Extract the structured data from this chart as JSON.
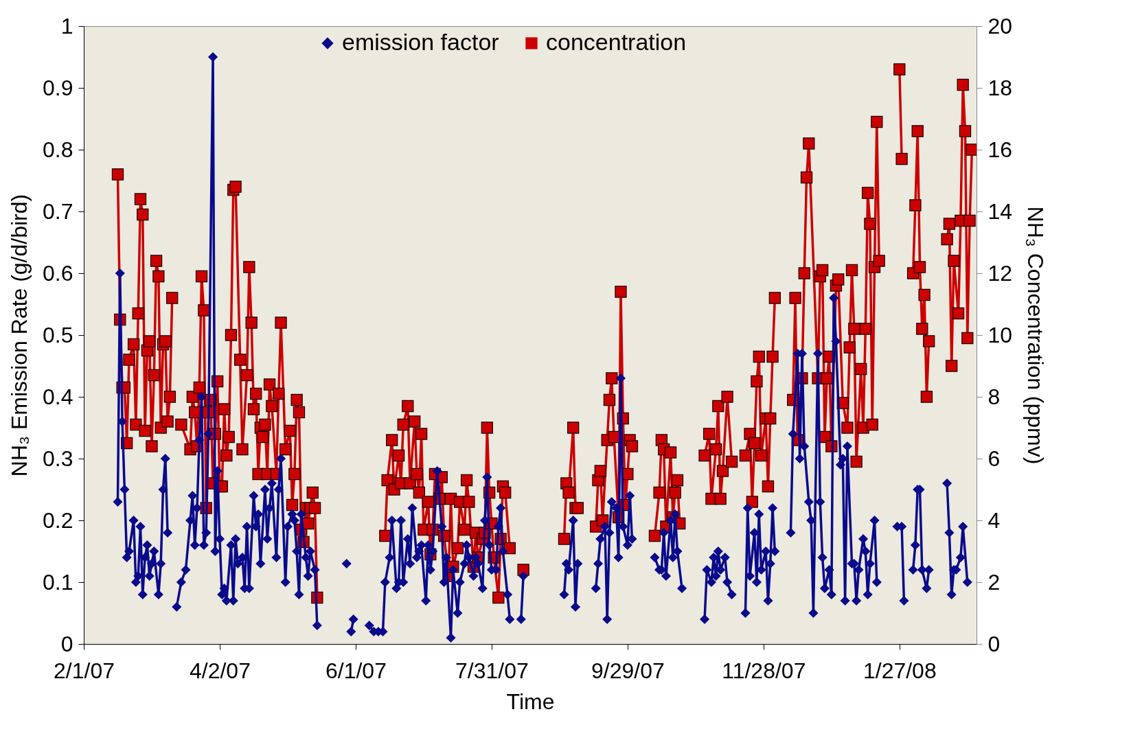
{
  "chart_data": {
    "type": "line",
    "xlabel": "Time",
    "ylabel": "NH₃ Emission Rate (g/d/bird)",
    "y2label": "NH₃ Concentration (ppmv)",
    "xlim": [
      "2007-02-01",
      "2008-03-01"
    ],
    "xticks": [
      {
        "value": "2007-02-01",
        "label": "2/1/07"
      },
      {
        "value": "2007-04-02",
        "label": "4/2/07"
      },
      {
        "value": "2007-06-01",
        "label": "6/1/07"
      },
      {
        "value": "2007-07-31",
        "label": "7/31/07"
      },
      {
        "value": "2007-09-29",
        "label": "9/29/07"
      },
      {
        "value": "2007-11-28",
        "label": "11/28/07"
      },
      {
        "value": "2008-01-27",
        "label": "1/27/08"
      }
    ],
    "ylim": [
      0,
      1
    ],
    "yticks": [
      0,
      0.1,
      0.2,
      0.3,
      0.4,
      0.5,
      0.6,
      0.7,
      0.8,
      0.9,
      1
    ],
    "y2lim": [
      0,
      20
    ],
    "y2ticks": [
      0,
      2,
      4,
      6,
      8,
      10,
      12,
      14,
      16,
      18,
      20
    ],
    "legend": "top",
    "grid": false,
    "series": [
      {
        "name": "emission factor",
        "color": "#0a0a8c",
        "marker": "diamond",
        "x": [
          "2007-02-16",
          "2007-02-17",
          "2007-02-18",
          "2007-02-19",
          "2007-02-20",
          "2007-02-21",
          "2007-02-23",
          "2007-02-24",
          "2007-02-25",
          "2007-02-26",
          "2007-02-27",
          "2007-02-28",
          "2007-03-01",
          "2007-03-02",
          "2007-03-03",
          "2007-03-04",
          "2007-03-06",
          "2007-03-07",
          "2007-03-08",
          "2007-03-09",
          "2007-03-10",
          "2007-03-12",
          "2007-03-14",
          "2007-03-16",
          "2007-03-18",
          "2007-03-20",
          "2007-03-21",
          "2007-03-22",
          "2007-03-23",
          "2007-03-24",
          "2007-03-25",
          "2007-03-26",
          "2007-03-27",
          "2007-03-28",
          "2007-03-30",
          "2007-03-31",
          "2007-04-01",
          "2007-04-02",
          "2007-04-03",
          "2007-04-04",
          "2007-04-05",
          "2007-04-07",
          "2007-04-08",
          "2007-04-09",
          "2007-04-10",
          "2007-04-12",
          "2007-04-13",
          "2007-04-14",
          "2007-04-15",
          "2007-04-17",
          "2007-04-18",
          "2007-04-19",
          "2007-04-20",
          "2007-04-22",
          "2007-04-23",
          "2007-04-24",
          "2007-04-25",
          "2007-04-27",
          "2007-04-28",
          "2007-04-29",
          "2007-05-01",
          "2007-05-02",
          "2007-05-04",
          "2007-05-05",
          "2007-05-06",
          "2007-05-07",
          "2007-05-08",
          "2007-05-10",
          "2007-05-11",
          "2007-05-12",
          "2007-05-14",
          "2007-05-15",
          "2007-05-22",
          "2007-05-28",
          "2007-05-29",
          "2007-05-30",
          "2007-05-31",
          "2007-06-04",
          "2007-06-07",
          "2007-06-09",
          "2007-06-11",
          "2007-06-13",
          "2007-06-14",
          "2007-06-16",
          "2007-06-17",
          "2007-06-19",
          "2007-06-20",
          "2007-06-21",
          "2007-06-22",
          "2007-06-24",
          "2007-06-25",
          "2007-06-26",
          "2007-06-28",
          "2007-06-29",
          "2007-06-30",
          "2007-07-02",
          "2007-07-03",
          "2007-07-04",
          "2007-07-05",
          "2007-07-07",
          "2007-07-09",
          "2007-07-10",
          "2007-07-11",
          "2007-07-13",
          "2007-07-14",
          "2007-07-16",
          "2007-07-17",
          "2007-07-19",
          "2007-07-20",
          "2007-07-21",
          "2007-07-23",
          "2007-07-24",
          "2007-07-25",
          "2007-07-27",
          "2007-07-28",
          "2007-07-29",
          "2007-07-30",
          "2007-07-31",
          "2007-08-02",
          "2007-08-03",
          "2007-08-04",
          "2007-08-05",
          "2007-08-07",
          "2007-08-08",
          "2007-08-11",
          "2007-08-13",
          "2007-08-14",
          "2007-08-20",
          "2007-09-01",
          "2007-09-02",
          "2007-09-03",
          "2007-09-05",
          "2007-09-06",
          "2007-09-07",
          "2007-09-11",
          "2007-09-15",
          "2007-09-16",
          "2007-09-17",
          "2007-09-19",
          "2007-09-20",
          "2007-09-21",
          "2007-09-22",
          "2007-09-24",
          "2007-09-25",
          "2007-09-26",
          "2007-09-27",
          "2007-09-29",
          "2007-09-30",
          "2007-10-01",
          "2007-10-06",
          "2007-10-11",
          "2007-10-13",
          "2007-10-14",
          "2007-10-15",
          "2007-10-16",
          "2007-10-18",
          "2007-10-19",
          "2007-10-20",
          "2007-10-21",
          "2007-10-23",
          "2007-10-28",
          "2007-11-02",
          "2007-11-03",
          "2007-11-05",
          "2007-11-06",
          "2007-11-07",
          "2007-11-08",
          "2007-11-09",
          "2007-11-11",
          "2007-11-12",
          "2007-11-14",
          "2007-11-17",
          "2007-11-20",
          "2007-11-21",
          "2007-11-22",
          "2007-11-24",
          "2007-11-25",
          "2007-11-26",
          "2007-11-27",
          "2007-11-29",
          "2007-11-30",
          "2007-12-01",
          "2007-12-02",
          "2007-12-03",
          "2007-12-07",
          "2007-12-10",
          "2007-12-11",
          "2007-12-13",
          "2007-12-14",
          "2007-12-15",
          "2007-12-16",
          "2007-12-18",
          "2007-12-19",
          "2007-12-20",
          "2007-12-22",
          "2007-12-23",
          "2007-12-24",
          "2007-12-25",
          "2007-12-27",
          "2007-12-28",
          "2007-12-29",
          "2007-12-30",
          "2008-01-01",
          "2008-01-02",
          "2008-01-03",
          "2008-01-04",
          "2008-01-06",
          "2008-01-07",
          "2008-01-08",
          "2008-01-09",
          "2008-01-11",
          "2008-01-12",
          "2008-01-13",
          "2008-01-14",
          "2008-01-16",
          "2008-01-17",
          "2008-01-21",
          "2008-01-26",
          "2008-01-28",
          "2008-01-29",
          "2008-01-31",
          "2008-02-02",
          "2008-02-03",
          "2008-02-04",
          "2008-02-05",
          "2008-02-06",
          "2008-02-08",
          "2008-02-09",
          "2008-02-13",
          "2008-02-17",
          "2008-02-18",
          "2008-02-19",
          "2008-02-20",
          "2008-02-21",
          "2008-02-23",
          "2008-02-24",
          "2008-02-26"
        ],
        "values": [
          0.23,
          0.6,
          0.36,
          0.25,
          0.14,
          0.15,
          0.2,
          0.1,
          0.11,
          0.19,
          0.08,
          0.14,
          0.16,
          0.11,
          0.13,
          0.15,
          0.08,
          0.13,
          0.25,
          0.3,
          0.18,
          null,
          0.06,
          0.1,
          0.12,
          0.2,
          0.24,
          0.16,
          0.22,
          0.33,
          0.4,
          0.16,
          0.18,
          0.34,
          0.95,
          0.15,
          0.28,
          0.17,
          0.08,
          0.09,
          0.07,
          0.16,
          0.07,
          0.17,
          0.13,
          0.14,
          0.09,
          0.19,
          0.09,
          0.24,
          0.19,
          0.21,
          0.13,
          0.25,
          0.17,
          0.22,
          0.26,
          0.14,
          0.25,
          0.3,
          0.1,
          0.19,
          0.21,
          0.2,
          0.15,
          0.08,
          0.21,
          0.14,
          0.11,
          0.15,
          0.12,
          0.03,
          null,
          0.13,
          null,
          0.02,
          0.04,
          null,
          0.03,
          0.02,
          0.02,
          0.02,
          0.1,
          0.14,
          0.2,
          0.09,
          0.1,
          0.2,
          0.1,
          0.17,
          0.13,
          0.22,
          0.14,
          0.15,
          0.16,
          0.07,
          0.16,
          0.12,
          0.15,
          0.28,
          0.19,
          0.1,
          0.14,
          0.01,
          0.12,
          0.05,
          0.1,
          0.13,
          0.16,
          0.14,
          0.11,
          0.14,
          0.13,
          0.09,
          0.2,
          0.27,
          0.16,
          0.12,
          0.12,
          0.19,
          0.22,
          0.15,
          0.08,
          0.04,
          null,
          0.04,
          0.11,
          null,
          0.08,
          0.13,
          0.12,
          0.2,
          0.06,
          0.13,
          null,
          0.09,
          0.13,
          0.17,
          0.19,
          0.04,
          0.18,
          0.23,
          0.22,
          0.14,
          0.43,
          0.19,
          0.16,
          0.24,
          0.17,
          null,
          0.14,
          0.12,
          0.12,
          0.18,
          0.11,
          0.2,
          0.14,
          0.21,
          0.15,
          0.09,
          null,
          0.04,
          0.12,
          0.1,
          0.14,
          0.11,
          0.15,
          0.12,
          0.14,
          0.1,
          0.08,
          null,
          0.05,
          0.22,
          0.11,
          0.18,
          0.1,
          0.21,
          0.12,
          0.15,
          0.07,
          0.13,
          0.22,
          0.15,
          null,
          0.18,
          0.34,
          0.47,
          0.3,
          0.47,
          0.32,
          0.23,
          0.2,
          0.05,
          0.47,
          0.23,
          0.14,
          0.09,
          0.12,
          0.08,
          0.56,
          0.49,
          0.29,
          0.3,
          0.07,
          0.32,
          0.13,
          0.13,
          0.07,
          0.12,
          0.17,
          0.15,
          0.08,
          0.13,
          0.2,
          0.1,
          null,
          0.19,
          0.19,
          0.07,
          null,
          0.12,
          0.16,
          0.25,
          0.25,
          0.12,
          0.09,
          0.12,
          null,
          0.26,
          0.18,
          0.08,
          0.12,
          0.12,
          0.14,
          0.19,
          0.1
        ]
      },
      {
        "name": "concentration",
        "color": "#cc0000",
        "marker": "square",
        "axis": "y2",
        "x": [
          "2007-02-16",
          "2007-02-17",
          "2007-02-18",
          "2007-02-19",
          "2007-02-20",
          "2007-02-21",
          "2007-02-23",
          "2007-02-24",
          "2007-02-25",
          "2007-02-26",
          "2007-02-27",
          "2007-02-28",
          "2007-03-01",
          "2007-03-02",
          "2007-03-03",
          "2007-03-04",
          "2007-03-05",
          "2007-03-06",
          "2007-03-07",
          "2007-03-08",
          "2007-03-09",
          "2007-03-10",
          "2007-03-11",
          "2007-03-12",
          "2007-03-14",
          "2007-03-16",
          "2007-03-20",
          "2007-03-21",
          "2007-03-22",
          "2007-03-23",
          "2007-03-24",
          "2007-03-25",
          "2007-03-26",
          "2007-03-27",
          "2007-03-28",
          "2007-03-29",
          "2007-03-30",
          "2007-03-31",
          "2007-04-01",
          "2007-04-02",
          "2007-04-03",
          "2007-04-04",
          "2007-04-05",
          "2007-04-06",
          "2007-04-07",
          "2007-04-08",
          "2007-04-09",
          "2007-04-11",
          "2007-04-12",
          "2007-04-14",
          "2007-04-15",
          "2007-04-16",
          "2007-04-17",
          "2007-04-18",
          "2007-04-19",
          "2007-04-20",
          "2007-04-21",
          "2007-04-22",
          "2007-04-23",
          "2007-04-24",
          "2007-04-25",
          "2007-04-27",
          "2007-04-28",
          "2007-04-29",
          "2007-05-01",
          "2007-05-03",
          "2007-05-04",
          "2007-05-05",
          "2007-05-06",
          "2007-05-07",
          "2007-05-08",
          "2007-05-09",
          "2007-05-10",
          "2007-05-11",
          "2007-05-12",
          "2007-05-13",
          "2007-05-14",
          "2007-05-15",
          "2007-06-01",
          "2007-06-14",
          "2007-06-15",
          "2007-06-17",
          "2007-06-18",
          "2007-06-20",
          "2007-06-21",
          "2007-06-22",
          "2007-06-24",
          "2007-06-25",
          "2007-06-27",
          "2007-06-28",
          "2007-06-29",
          "2007-06-30",
          "2007-07-01",
          "2007-07-03",
          "2007-07-04",
          "2007-07-05",
          "2007-07-06",
          "2007-07-08",
          "2007-07-09",
          "2007-07-10",
          "2007-07-12",
          "2007-07-13",
          "2007-07-14",
          "2007-07-16",
          "2007-07-17",
          "2007-07-19",
          "2007-07-20",
          "2007-07-21",
          "2007-07-23",
          "2007-07-24",
          "2007-07-25",
          "2007-07-27",
          "2007-07-28",
          "2007-07-29",
          "2007-07-30",
          "2007-07-31",
          "2007-08-01",
          "2007-08-03",
          "2007-08-04",
          "2007-08-05",
          "2007-08-06",
          "2007-08-08",
          "2007-08-11",
          "2007-08-14",
          "2007-08-20",
          "2007-09-01",
          "2007-09-02",
          "2007-09-03",
          "2007-09-05",
          "2007-09-06",
          "2007-09-07",
          "2007-09-11",
          "2007-09-15",
          "2007-09-16",
          "2007-09-17",
          "2007-09-18",
          "2007-09-20",
          "2007-09-21",
          "2007-09-22",
          "2007-09-23",
          "2007-09-25",
          "2007-09-26",
          "2007-09-27",
          "2007-09-28",
          "2007-09-29",
          "2007-09-30",
          "2007-10-01",
          "2007-10-06",
          "2007-10-11",
          "2007-10-13",
          "2007-10-14",
          "2007-10-15",
          "2007-10-16",
          "2007-10-18",
          "2007-10-19",
          "2007-10-20",
          "2007-10-21",
          "2007-10-22",
          "2007-10-28",
          "2007-11-02",
          "2007-11-04",
          "2007-11-05",
          "2007-11-07",
          "2007-11-08",
          "2007-11-09",
          "2007-11-10",
          "2007-11-12",
          "2007-11-14",
          "2007-11-17",
          "2007-11-20",
          "2007-11-22",
          "2007-11-23",
          "2007-11-24",
          "2007-11-25",
          "2007-11-26",
          "2007-11-27",
          "2007-11-29",
          "2007-11-30",
          "2007-12-01",
          "2007-12-02",
          "2007-12-03",
          "2007-12-07",
          "2007-12-11",
          "2007-12-12",
          "2007-12-13",
          "2007-12-15",
          "2007-12-16",
          "2007-12-17",
          "2007-12-18",
          "2007-12-22",
          "2007-12-23",
          "2007-12-24",
          "2007-12-25",
          "2007-12-26",
          "2007-12-27",
          "2007-12-28",
          "2007-12-30",
          "2007-12-31",
          "2008-01-02",
          "2008-01-04",
          "2008-01-05",
          "2008-01-06",
          "2008-01-07",
          "2008-01-08",
          "2008-01-10",
          "2008-01-11",
          "2008-01-12",
          "2008-01-13",
          "2008-01-14",
          "2008-01-15",
          "2008-01-16",
          "2008-01-17",
          "2008-01-18",
          "2008-01-22",
          "2008-01-27",
          "2008-01-28",
          "2008-01-31",
          "2008-02-02",
          "2008-02-03",
          "2008-02-04",
          "2008-02-05",
          "2008-02-06",
          "2008-02-07",
          "2008-02-08",
          "2008-02-09",
          "2008-02-13",
          "2008-02-17",
          "2008-02-18",
          "2008-02-19",
          "2008-02-20",
          "2008-02-22",
          "2008-02-23",
          "2008-02-24",
          "2008-02-25",
          "2008-02-26",
          "2008-02-27",
          "2008-02-28"
        ],
        "values": [
          15.2,
          10.5,
          8.3,
          8.3,
          6.5,
          9.2,
          9.7,
          7.1,
          10.7,
          14.4,
          13.9,
          6.9,
          9.5,
          9.8,
          6.4,
          8.7,
          12.4,
          11.9,
          7,
          9.7,
          9.8,
          7.2,
          8,
          11.2,
          null,
          7.1,
          6.3,
          8,
          7.5,
          6.4,
          8.3,
          11.9,
          10.8,
          4.4,
          7.5,
          7.9,
          5.2,
          6.8,
          8.5,
          5.1,
          5.1,
          7.6,
          6.1,
          6.7,
          10,
          14.7,
          14.8,
          9.2,
          6.3,
          8.7,
          12.2,
          10.4,
          7.6,
          8.1,
          5.5,
          7,
          6.7,
          7.1,
          5.5,
          8.4,
          7.7,
          5.5,
          8.1,
          10.4,
          6.3,
          6.9,
          4.5,
          5.5,
          7.9,
          7.5,
          3.7,
          3.3,
          4.4,
          3.9,
          4.4,
          4.9,
          4.4,
          1.5,
          null,
          3.5,
          5.3,
          6.6,
          5,
          6.1,
          5.2,
          7.1,
          7.7,
          5.2,
          7.2,
          5.5,
          4.9,
          6.8,
          3.7,
          4.6,
          2.9,
          3.7,
          5.5,
          4.7,
          5.4,
          3.5,
          2.2,
          4.7,
          2.5,
          3.1,
          4.6,
          3.7,
          5.3,
          4.6,
          2.5,
          3.6,
          2.8,
          3.4,
          3.6,
          7,
          4.9,
          3.9,
          2.8,
          1.5,
          3.4,
          5.1,
          4.9,
          3.1,
          null,
          2.4,
          null,
          3.4,
          5.2,
          4.9,
          7,
          4.4,
          4.4,
          null,
          3.8,
          5.3,
          5.6,
          4,
          6.6,
          7.9,
          8.6,
          6.7,
          4.1,
          11.4,
          7.3,
          4.5,
          5.5,
          6.6,
          6.4,
          null,
          3.5,
          4.9,
          6.6,
          6.3,
          3.8,
          6.2,
          4.1,
          4.9,
          5.3,
          3.9,
          null,
          6.1,
          6.8,
          4.7,
          6.3,
          7.7,
          4.7,
          5.6,
          8,
          5.9,
          null,
          6.1,
          6.8,
          4.6,
          6.5,
          8.5,
          9.3,
          6.1,
          7.3,
          5.1,
          7.3,
          9.3,
          11.2,
          null,
          7.9,
          11.2,
          6.6,
          8.6,
          12,
          15.1,
          16.2,
          8.6,
          11.9,
          12.1,
          6.7,
          8.6,
          9.3,
          6.4,
          11.6,
          11.8,
          7.8,
          7,
          9.6,
          12.1,
          10.2,
          5.9,
          8.9,
          7,
          10.2,
          14.6,
          13.6,
          7.1,
          12.2,
          16.9,
          12.4,
          null,
          18.6,
          15.7,
          null,
          12,
          14.2,
          16.6,
          12.2,
          10.2,
          11.3,
          8,
          9.8,
          null,
          13.1,
          13.6,
          9,
          12.4,
          10.7,
          13.7,
          18.1,
          16.6,
          9.9,
          13.7,
          16
        ]
      }
    ]
  }
}
